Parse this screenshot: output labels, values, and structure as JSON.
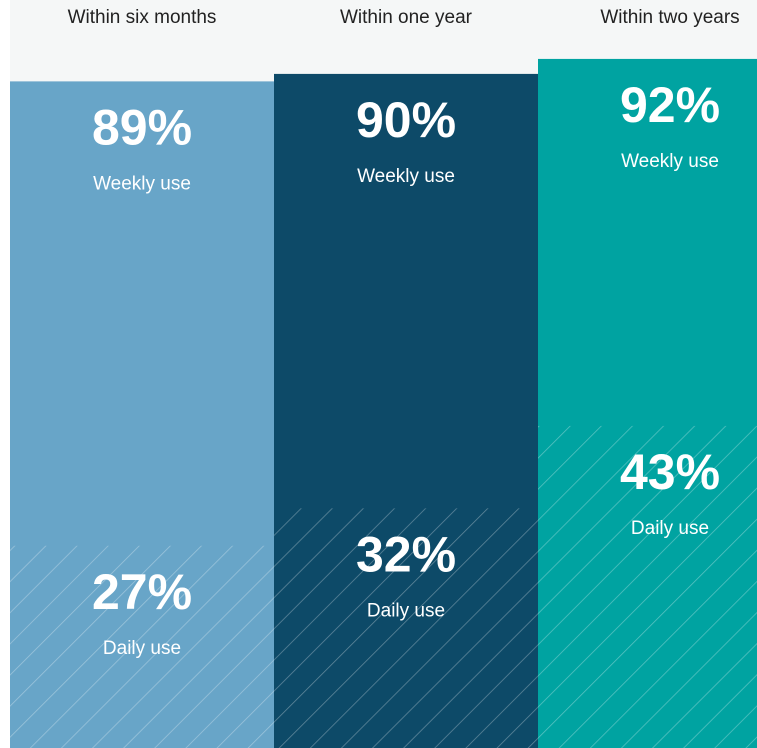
{
  "chart_data": {
    "type": "bar",
    "categories": [
      "Within six months",
      "Within one year",
      "Within two years"
    ],
    "colors": [
      "#68a5c8",
      "#0d4a68",
      "#00a3a1"
    ],
    "series": [
      {
        "name": "Weekly use",
        "values": [
          89,
          90,
          92
        ],
        "value_labels": [
          "89%",
          "90%",
          "92%"
        ]
      },
      {
        "name": "Daily use",
        "values": [
          27,
          32,
          43
        ],
        "value_labels": [
          "27%",
          "32%",
          "43%"
        ],
        "hatch": true
      }
    ],
    "ylim": [
      0,
      100
    ]
  }
}
